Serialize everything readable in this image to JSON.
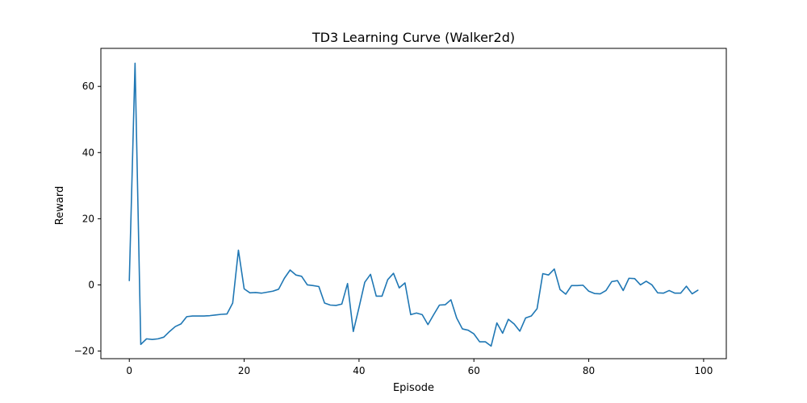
{
  "chart_data": {
    "type": "line",
    "title": "TD3 Learning Curve (Walker2d)",
    "xlabel": "Episode",
    "ylabel": "Reward",
    "xlim": [
      -4.95,
      103.95
    ],
    "ylim": [
      -22.3,
      71.5
    ],
    "x_ticks": [
      0,
      20,
      40,
      60,
      80,
      100
    ],
    "y_ticks": [
      -20,
      0,
      20,
      40,
      60
    ],
    "grid": false,
    "legend": "none",
    "line_color": "#1f77b4",
    "series": [
      {
        "values": [
          1.3,
          67.0,
          -18.0,
          -16.3,
          -16.5,
          -16.3,
          -15.8,
          -14.1,
          -12.6,
          -11.8,
          -9.6,
          -9.4,
          -9.4,
          -9.4,
          -9.3,
          -9.1,
          -8.9,
          -8.8,
          -5.5,
          10.5,
          -1.2,
          -2.4,
          -2.3,
          -2.5,
          -2.2,
          -1.9,
          -1.3,
          2.0,
          4.5,
          3.0,
          2.6,
          0.0,
          -0.2,
          -0.5,
          -5.5,
          -6.1,
          -6.2,
          -5.8,
          0.4,
          -14.1,
          -6.8,
          0.8,
          3.2,
          -3.4,
          -3.4,
          1.6,
          3.5,
          -0.9,
          0.6,
          -9.0,
          -8.5,
          -9.0,
          -12.0,
          -9.0,
          -6.1,
          -6.0,
          -4.5,
          -10.0,
          -13.3,
          -13.7,
          -14.8,
          -17.2,
          -17.2,
          -18.5,
          -11.5,
          -14.6,
          -10.4,
          -11.8,
          -14.0,
          -10.0,
          -9.4,
          -7.2,
          3.4,
          3.0,
          4.8,
          -1.4,
          -2.8,
          -0.2,
          -0.2,
          -0.1,
          -1.9,
          -2.6,
          -2.7,
          -1.7,
          1.0,
          1.3,
          -1.7,
          2.0,
          1.9,
          0.0,
          1.1,
          0.0,
          -2.4,
          -2.5,
          -1.7,
          -2.5,
          -2.5,
          -0.4,
          -2.7,
          -1.6
        ]
      }
    ]
  }
}
